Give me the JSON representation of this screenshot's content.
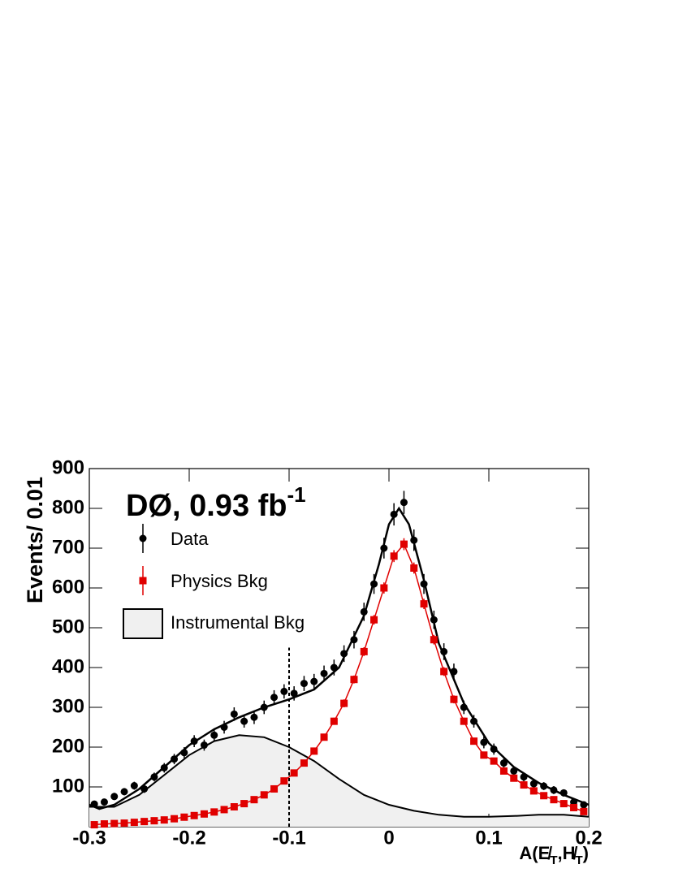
{
  "chart_data": {
    "type": "histogram-fit",
    "label": "DØ, 0.93 fb",
    "label_sup": "-1",
    "ylabel": "Events/ 0.01",
    "xlabel_parts": [
      "A(",
      "E̸",
      "T",
      ",",
      "H̸",
      "T",
      ")"
    ],
    "xlim": [
      -0.3,
      0.2
    ],
    "ylim": [
      0,
      900
    ],
    "xticks": [
      -0.3,
      -0.2,
      -0.1,
      0,
      0.1,
      0.2
    ],
    "yticks": [
      100,
      200,
      300,
      400,
      500,
      600,
      700,
      800,
      900
    ],
    "x": [
      -0.295,
      -0.285,
      -0.275,
      -0.265,
      -0.255,
      -0.245,
      -0.235,
      -0.225,
      -0.215,
      -0.205,
      -0.195,
      -0.185,
      -0.175,
      -0.165,
      -0.155,
      -0.145,
      -0.135,
      -0.125,
      -0.115,
      -0.105,
      -0.095,
      -0.085,
      -0.075,
      -0.065,
      -0.055,
      -0.045,
      -0.035,
      -0.025,
      -0.015,
      -0.005,
      0.005,
      0.015,
      0.025,
      0.035,
      0.045,
      0.055,
      0.065,
      0.075,
      0.085,
      0.095,
      0.105,
      0.115,
      0.125,
      0.135,
      0.145,
      0.155,
      0.165,
      0.175,
      0.185,
      0.195
    ],
    "series": [
      {
        "name": "Data",
        "color": "#000000",
        "marker": "circle",
        "values": [
          57,
          62,
          76,
          88,
          103,
          95,
          125,
          148,
          170,
          186,
          215,
          205,
          230,
          250,
          283,
          265,
          275,
          300,
          325,
          340,
          335,
          360,
          365,
          385,
          400,
          435,
          470,
          540,
          610,
          700,
          785,
          815,
          720,
          610,
          520,
          440,
          390,
          300,
          265,
          212,
          195,
          160,
          140,
          125,
          108,
          102,
          92,
          85,
          62,
          55
        ],
        "errors": [
          8,
          8,
          9,
          9,
          10,
          10,
          11,
          12,
          13,
          14,
          15,
          14,
          15,
          16,
          17,
          16,
          17,
          17,
          18,
          18,
          18,
          19,
          19,
          20,
          20,
          21,
          22,
          23,
          25,
          26,
          28,
          29,
          27,
          25,
          23,
          21,
          20,
          17,
          16,
          15,
          14,
          13,
          12,
          11,
          10,
          10,
          10,
          9,
          8,
          7
        ]
      },
      {
        "name": "Physics Bkg",
        "color": "#e00000",
        "marker": "square",
        "fit_line": true,
        "values": [
          5,
          7,
          8,
          9,
          11,
          13,
          15,
          17,
          20,
          24,
          28,
          32,
          37,
          43,
          50,
          58,
          68,
          80,
          95,
          115,
          135,
          160,
          190,
          225,
          265,
          310,
          370,
          440,
          520,
          600,
          680,
          710,
          650,
          560,
          470,
          390,
          320,
          265,
          215,
          180,
          165,
          140,
          122,
          105,
          90,
          78,
          68,
          58,
          48,
          38
        ],
        "errors": [
          1,
          1,
          1,
          1,
          1,
          2,
          2,
          2,
          2,
          2,
          3,
          3,
          3,
          3,
          4,
          4,
          4,
          5,
          5,
          6,
          6,
          7,
          7,
          8,
          9,
          10,
          10,
          11,
          12,
          14,
          15,
          15,
          14,
          13,
          12,
          11,
          10,
          9,
          8,
          7,
          7,
          6,
          6,
          5,
          5,
          4,
          4,
          4,
          3,
          3
        ]
      }
    ],
    "instrumental": {
      "name": "Instrumental Bkg",
      "fill": "#f0f0f0",
      "color": "#000000",
      "x": [
        -0.3,
        -0.275,
        -0.25,
        -0.225,
        -0.2,
        -0.175,
        -0.15,
        -0.125,
        -0.1,
        -0.075,
        -0.05,
        -0.025,
        0,
        0.025,
        0.05,
        0.075,
        0.1,
        0.125,
        0.15,
        0.175,
        0.2
      ],
      "values": [
        50,
        50,
        80,
        130,
        180,
        215,
        230,
        225,
        200,
        165,
        120,
        80,
        55,
        40,
        30,
        25,
        25,
        27,
        30,
        30,
        25
      ]
    },
    "total_fit": {
      "color": "#000000",
      "x": [
        -0.3,
        -0.29,
        -0.275,
        -0.25,
        -0.225,
        -0.2,
        -0.175,
        -0.15,
        -0.125,
        -0.1,
        -0.075,
        -0.05,
        -0.025,
        -0.01,
        0,
        0.01,
        0.02,
        0.035,
        0.05,
        0.075,
        0.1,
        0.125,
        0.15,
        0.175,
        0.2
      ],
      "values": [
        55,
        45,
        55,
        95,
        150,
        205,
        245,
        275,
        300,
        320,
        345,
        400,
        530,
        660,
        760,
        800,
        760,
        620,
        460,
        310,
        210,
        150,
        110,
        80,
        55
      ]
    },
    "cut_line": {
      "x": -0.1,
      "y_top": 450
    }
  }
}
